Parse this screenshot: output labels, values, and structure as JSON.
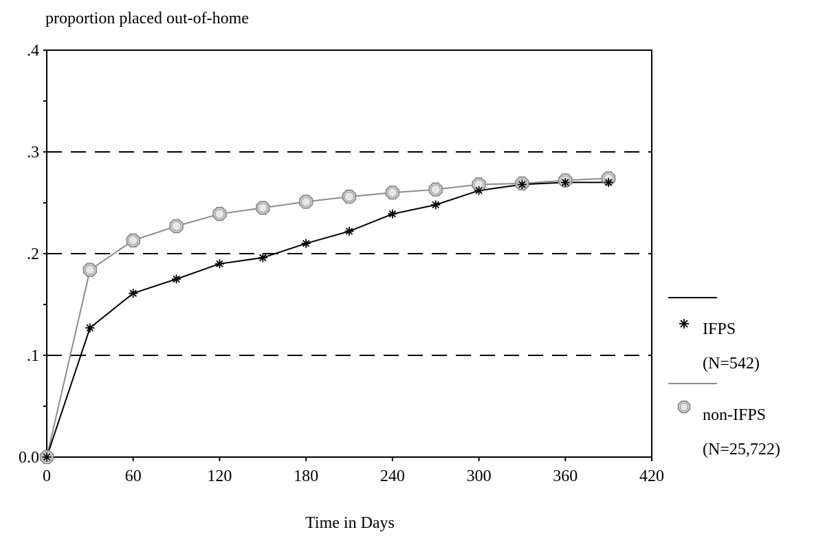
{
  "chart_data": {
    "type": "line",
    "title": "",
    "ylabel": "proportion placed out-of-home",
    "xlabel": "Time in Days",
    "xlim": [
      0,
      420
    ],
    "ylim": [
      0,
      0.4
    ],
    "x_ticks": [
      0,
      60,
      120,
      180,
      240,
      300,
      360,
      420
    ],
    "x_tick_labels": [
      "0",
      "60",
      "120",
      "180",
      "240",
      "300",
      "360",
      "420"
    ],
    "y_ticks": [
      0,
      0.1,
      0.2,
      0.3,
      0.4
    ],
    "y_tick_labels": [
      "0.0",
      ".1",
      ".2",
      ".3",
      ".4"
    ],
    "y_minor_ticks": [
      0.05,
      0.15,
      0.25,
      0.35
    ],
    "grid_y_dashed": [
      0.1,
      0.2,
      0.3
    ],
    "legend_position": "right",
    "x": [
      0,
      30,
      60,
      90,
      120,
      150,
      180,
      210,
      240,
      270,
      300,
      330,
      360,
      390
    ],
    "series": [
      {
        "name": "IFPS",
        "legend_note": "(N=542)",
        "color": "#000000",
        "marker": "asterisk",
        "values": [
          0.0,
          0.127,
          0.161,
          0.175,
          0.19,
          0.196,
          0.21,
          0.222,
          0.239,
          0.248,
          0.262,
          0.268,
          0.27,
          0.27
        ]
      },
      {
        "name": "non-IFPS",
        "legend_note": "(N=25,722)",
        "color": "#8c8c8c",
        "marker": "octagon",
        "values": [
          0.0,
          0.184,
          0.213,
          0.227,
          0.239,
          0.245,
          0.251,
          0.256,
          0.26,
          0.263,
          0.268,
          0.269,
          0.272,
          0.274
        ]
      }
    ]
  }
}
